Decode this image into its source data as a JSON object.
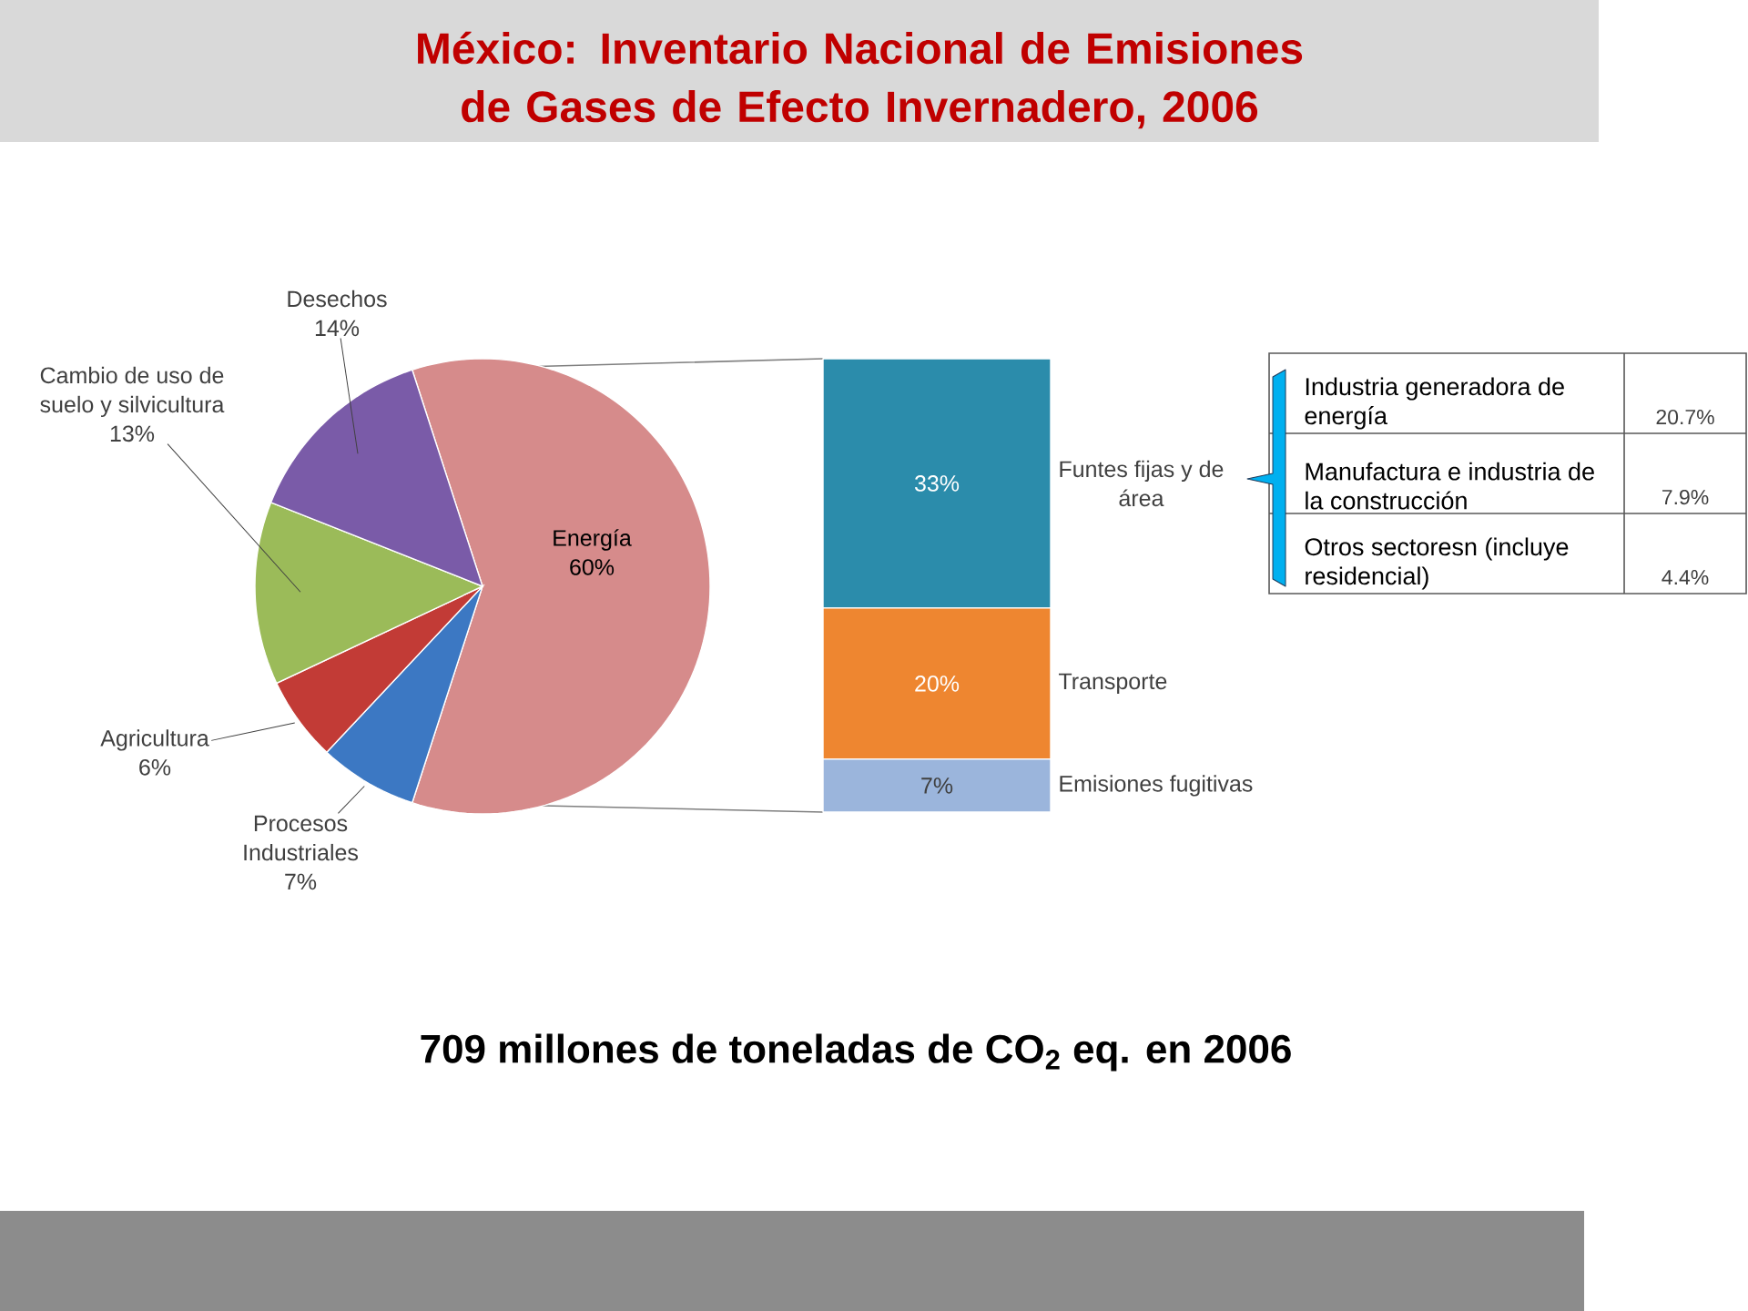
{
  "chart_data": [
    {
      "type": "pie",
      "title": "México: Inventario Nacional de Emisiones de Gases de Efecto Invernadero, 2006",
      "categories": [
        "Energía",
        "Procesos Industriales",
        "Agricultura",
        "Cambio de uso de suelo y silvicultura",
        "Desechos"
      ],
      "values": [
        60,
        7,
        6,
        13,
        14
      ],
      "colors": [
        "#d68b8b",
        "#3c78c3",
        "#c23b36",
        "#9bbb59",
        "#7a5ba8"
      ],
      "value_labels": [
        "60%",
        "7%",
        "6%",
        "13%",
        "14%"
      ],
      "annotations": [
        "709 millones de toneladas de CO$_{2}$ eq. en 2006"
      ]
    },
    {
      "type": "bar",
      "stacked": true,
      "categories": [
        null
      ],
      "series": [
        {
          "name": "Emisiones fugitivas",
          "color": "#9bb5dc",
          "values": [
            7
          ],
          "value_labels": [
            "7%"
          ]
        },
        {
          "name": "Transporte",
          "color": "#ee8630",
          "values": [
            20
          ],
          "value_labels": [
            "20%"
          ]
        },
        {
          "name": "Funtes fijas y de área",
          "color": "#2b8cab",
          "values": [
            33
          ],
          "value_labels": [
            "33%"
          ]
        }
      ]
    },
    {
      "type": "other",
      "categories": [
        "Industria generadora de energía",
        "Manufactura e industria de la construcción",
        "Otros sectoresn (incluye residencial)"
      ],
      "values": [
        20.7,
        7.9,
        4.4
      ],
      "value_labels": [
        "20.7%",
        "7.9%",
        "4.4%"
      ]
    }
  ]
}
